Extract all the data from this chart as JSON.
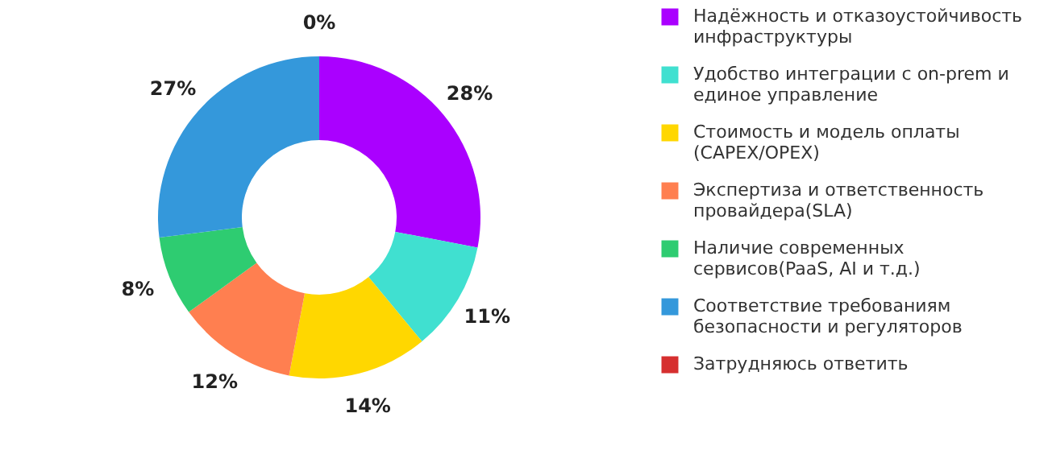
{
  "chart_data": {
    "type": "donut",
    "categories": [
      "Надёжность и отказоустойчивость инфраструктуры",
      "Удобство интеграции с on-prem и единое управление",
      "Стоимость и модель оплаты (CAPEX/OPEX)",
      "Экспертиза и ответственность провайдера(SLA)",
      "Наличие современных сервисов(PaaS, AI и т.д.)",
      "Соответствие требованиям безопасности и регуляторов",
      "Затрудняюсь ответить"
    ],
    "values": [
      28,
      11,
      14,
      12,
      8,
      27,
      0
    ],
    "value_labels": [
      "28%",
      "11%",
      "14%",
      "12%",
      "8%",
      "27%",
      "0%"
    ],
    "colors": [
      "#aa00ff",
      "#40e0d0",
      "#ffd700",
      "#ff7f50",
      "#2ecc71",
      "#3498db",
      "#d62f2f"
    ],
    "legend": "right"
  }
}
